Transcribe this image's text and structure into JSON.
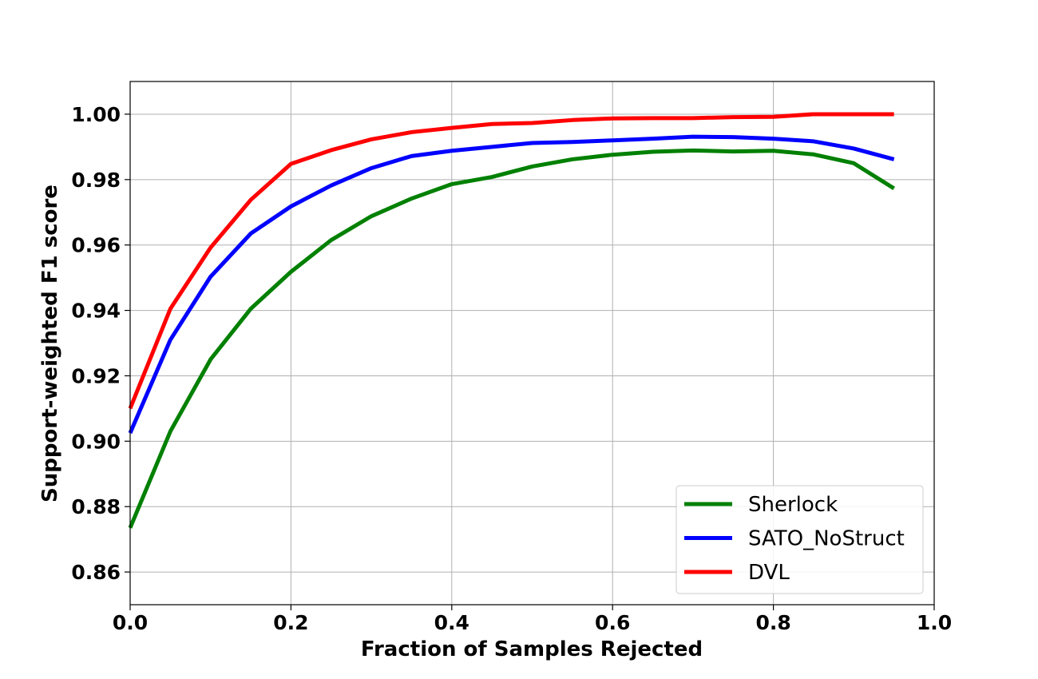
{
  "chart_data": {
    "type": "line",
    "xlabel": "Fraction of Samples Rejected",
    "ylabel": "Support-weighted F1 score",
    "xlim": [
      0.0,
      1.0
    ],
    "ylim": [
      0.85,
      1.01
    ],
    "xticks": [
      "0.0",
      "0.2",
      "0.4",
      "0.6",
      "0.8",
      "1.0"
    ],
    "xtick_values": [
      0.0,
      0.2,
      0.4,
      0.6,
      0.8,
      1.0
    ],
    "yticks": [
      "0.86",
      "0.88",
      "0.90",
      "0.92",
      "0.94",
      "0.96",
      "0.98",
      "1.00"
    ],
    "ytick_values": [
      0.86,
      0.88,
      0.9,
      0.92,
      0.94,
      0.96,
      0.98,
      1.0
    ],
    "grid": true,
    "legend_position": "bottom-right",
    "x": [
      0.0,
      0.05,
      0.1,
      0.15,
      0.2,
      0.25,
      0.3,
      0.35,
      0.4,
      0.45,
      0.5,
      0.55,
      0.6,
      0.65,
      0.7,
      0.75,
      0.8,
      0.85,
      0.9,
      0.95
    ],
    "series": [
      {
        "name": "Sherlock",
        "color": "#008000",
        "values": [
          0.8735,
          0.903,
          0.925,
          0.9405,
          0.9518,
          0.9615,
          0.9688,
          0.9742,
          0.9786,
          0.9808,
          0.984,
          0.9862,
          0.9876,
          0.9885,
          0.9889,
          0.9886,
          0.9888,
          0.9877,
          0.985,
          0.9773
        ]
      },
      {
        "name": "SATO_NoStruct",
        "color": "#0000ff",
        "values": [
          0.9025,
          0.931,
          0.9503,
          0.9635,
          0.9718,
          0.9782,
          0.9835,
          0.9872,
          0.9888,
          0.99,
          0.9912,
          0.9915,
          0.992,
          0.9925,
          0.9931,
          0.993,
          0.9925,
          0.9917,
          0.9895,
          0.9862
        ]
      },
      {
        "name": "DVL",
        "color": "#ff0000",
        "values": [
          0.91,
          0.9405,
          0.9592,
          0.9738,
          0.9848,
          0.989,
          0.9923,
          0.9945,
          0.9958,
          0.997,
          0.9973,
          0.9982,
          0.9987,
          0.9988,
          0.9988,
          0.9991,
          0.9992,
          1.0,
          1.0,
          1.0
        ]
      }
    ]
  }
}
